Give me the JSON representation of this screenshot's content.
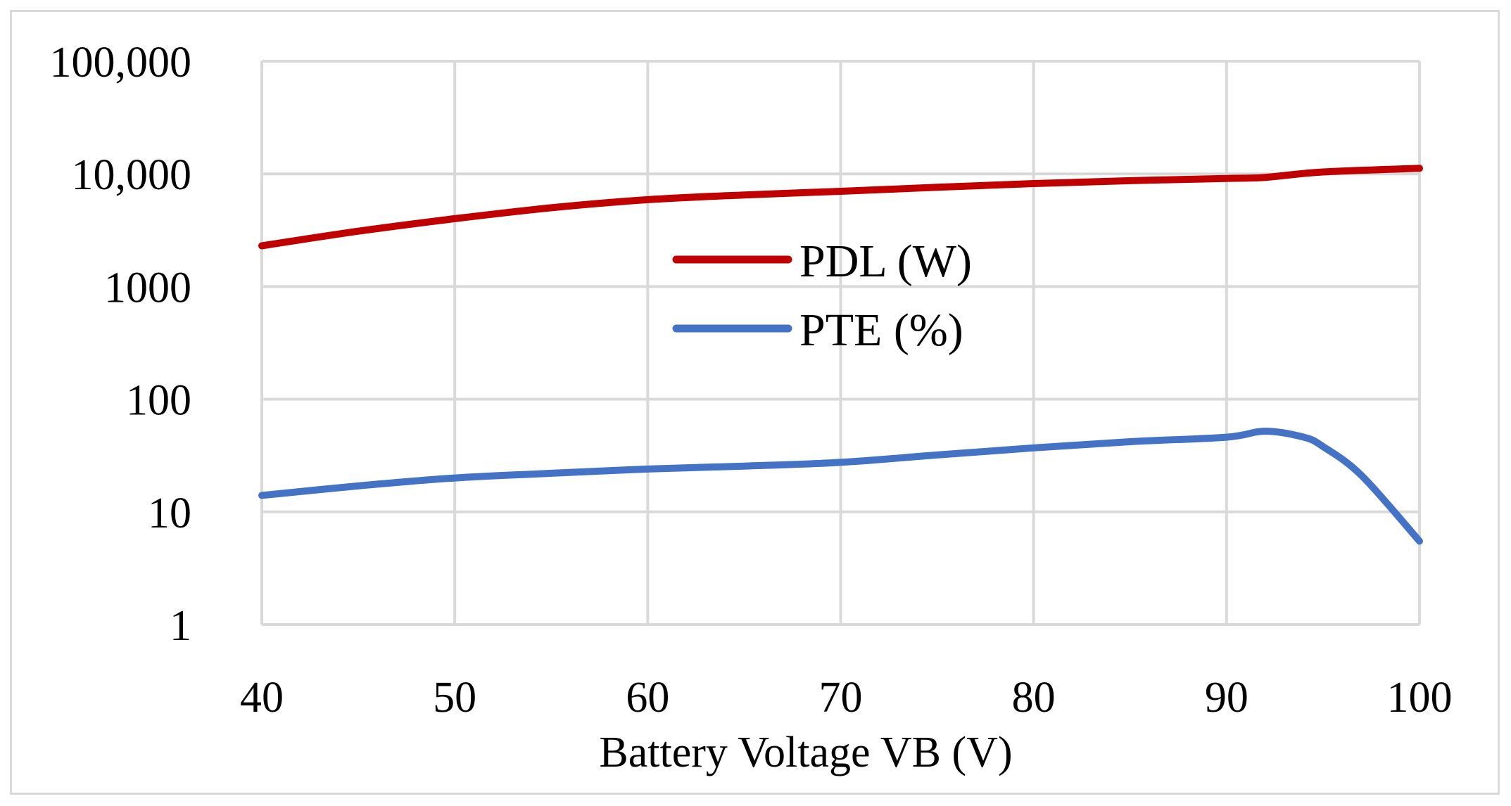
{
  "chart_data": {
    "type": "line",
    "title": "",
    "xlabel": "Battery Voltage VB (V)",
    "ylabel": "",
    "y_scale": "log",
    "xlim": [
      40,
      100
    ],
    "ylim": [
      1,
      100000
    ],
    "x_ticks": [
      {
        "value": 40,
        "label": "40"
      },
      {
        "value": 50,
        "label": "50"
      },
      {
        "value": 60,
        "label": "60"
      },
      {
        "value": 70,
        "label": "70"
      },
      {
        "value": 80,
        "label": "80"
      },
      {
        "value": 90,
        "label": "90"
      },
      {
        "value": 100,
        "label": "100"
      }
    ],
    "y_ticks": [
      {
        "value": 1,
        "label": "1"
      },
      {
        "value": 10,
        "label": "10"
      },
      {
        "value": 100,
        "label": "100"
      },
      {
        "value": 1000,
        "label": "1000"
      },
      {
        "value": 10000,
        "label": "10,000"
      },
      {
        "value": 100000,
        "label": "100,000"
      }
    ],
    "grid": true,
    "legend_position": "center",
    "series": [
      {
        "name": "PDL (W)",
        "color": "#c00000",
        "points": [
          [
            40,
            2300
          ],
          [
            45,
            3100
          ],
          [
            50,
            4000
          ],
          [
            55,
            5000
          ],
          [
            60,
            5900
          ],
          [
            65,
            6500
          ],
          [
            70,
            7000
          ],
          [
            75,
            7600
          ],
          [
            80,
            8200
          ],
          [
            85,
            8700
          ],
          [
            90,
            9100
          ],
          [
            92,
            9300
          ],
          [
            95,
            10400
          ],
          [
            100,
            11200
          ]
        ]
      },
      {
        "name": "PTE (%)",
        "color": "#4472c4",
        "points": [
          [
            40,
            14
          ],
          [
            45,
            17
          ],
          [
            50,
            20
          ],
          [
            55,
            22
          ],
          [
            60,
            24
          ],
          [
            65,
            25.5
          ],
          [
            70,
            27.5
          ],
          [
            75,
            32
          ],
          [
            80,
            37
          ],
          [
            85,
            42
          ],
          [
            90,
            46
          ],
          [
            92,
            52
          ],
          [
            94,
            46
          ],
          [
            95,
            38
          ],
          [
            97,
            21
          ],
          [
            100,
            5.5
          ]
        ]
      }
    ]
  }
}
